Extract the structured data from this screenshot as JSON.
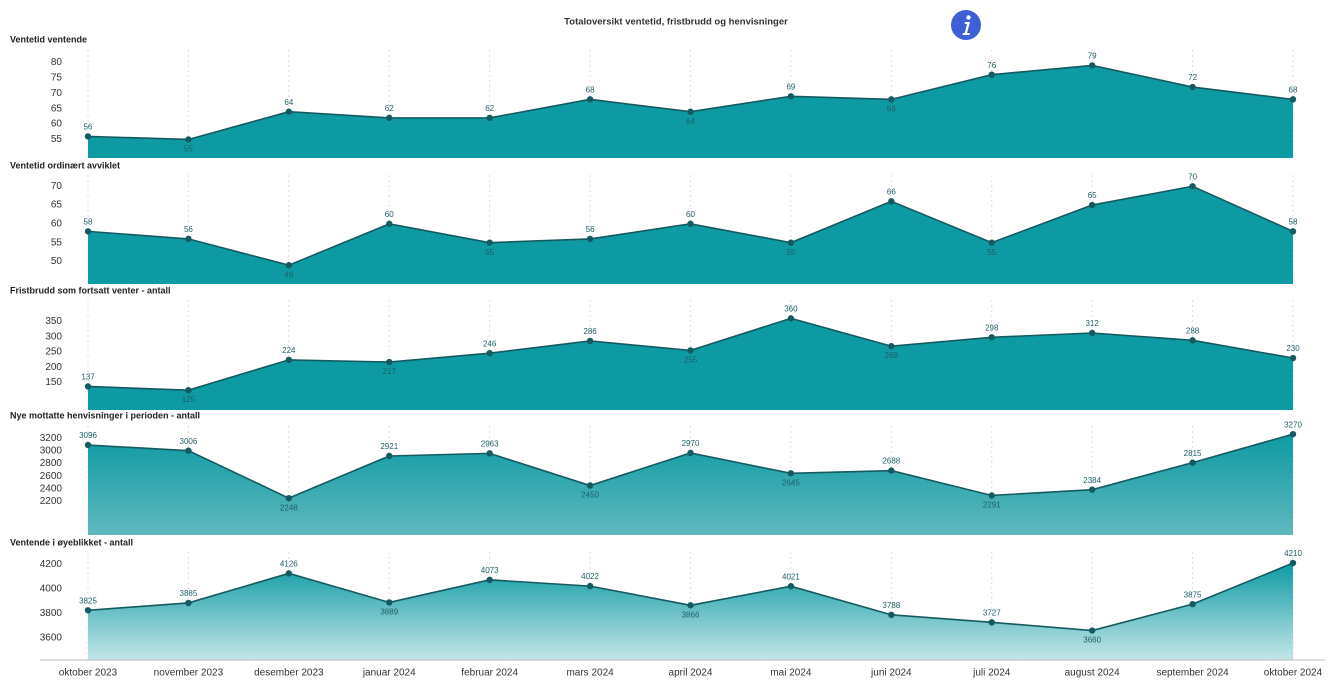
{
  "title": "Totaloversikt ventetid, fristbrudd og henvisninger",
  "x_grid": true,
  "chart_data": [
    {
      "type": "area",
      "title": "Ventetid ventende",
      "values": [
        56,
        55,
        64,
        62,
        62,
        68,
        64,
        69,
        68,
        76,
        79,
        72,
        68
      ],
      "ylim": [
        49,
        84
      ],
      "yticks": [
        55,
        60,
        65,
        70,
        75,
        80
      ],
      "color": "#0e9aa3",
      "line_color": "#155a60"
    },
    {
      "type": "area",
      "title": "Ventetid ordinært avviklet",
      "values": [
        58,
        56,
        49,
        60,
        55,
        56,
        60,
        55,
        66,
        55,
        65,
        70,
        58
      ],
      "ylim": [
        44,
        73
      ],
      "yticks": [
        50,
        55,
        60,
        65,
        70
      ],
      "color": "#0e9aa3",
      "line_color": "#155a60"
    },
    {
      "type": "area",
      "title": "Fristbrudd som fortsatt venter - antall",
      "values": [
        137,
        125,
        224,
        217,
        246,
        286,
        255,
        360,
        269,
        298,
        312,
        288,
        230
      ],
      "ylim": [
        60,
        420
      ],
      "yticks": [
        150,
        200,
        250,
        300,
        350
      ],
      "color": "#0e9aa3",
      "line_color": "#155a60"
    },
    {
      "type": "area",
      "title": "Nye mottatte henvisninger i perioden - antall",
      "values": [
        3096,
        3006,
        2248,
        2921,
        2963,
        2450,
        2970,
        2645,
        2688,
        2291,
        2384,
        2815,
        3270
      ],
      "ylim": [
        1660,
        3400
      ],
      "yticks": [
        2200,
        2400,
        2600,
        2800,
        3000,
        3200
      ],
      "color": "#0e9aa3",
      "line_color": "#155a60"
    },
    {
      "type": "area",
      "title": "Ventende i øyeblikket - antall",
      "categories": [
        "oktober 2023",
        "november 2023",
        "desember 2023",
        "januar 2024",
        "februar 2024",
        "mars 2024",
        "april 2024",
        "mai 2024",
        "juni 2024",
        "juli 2024",
        "august 2024",
        "september 2024",
        "oktober 2024"
      ],
      "values": [
        3825,
        3885,
        4126,
        3889,
        4073,
        4022,
        3866,
        4021,
        3788,
        3727,
        3660,
        3875,
        4210
      ],
      "ylim": [
        3420,
        4300
      ],
      "yticks": [
        3600,
        3800,
        4000,
        4200
      ],
      "color": "#0e9aa3",
      "line_color": "#155a60"
    }
  ]
}
